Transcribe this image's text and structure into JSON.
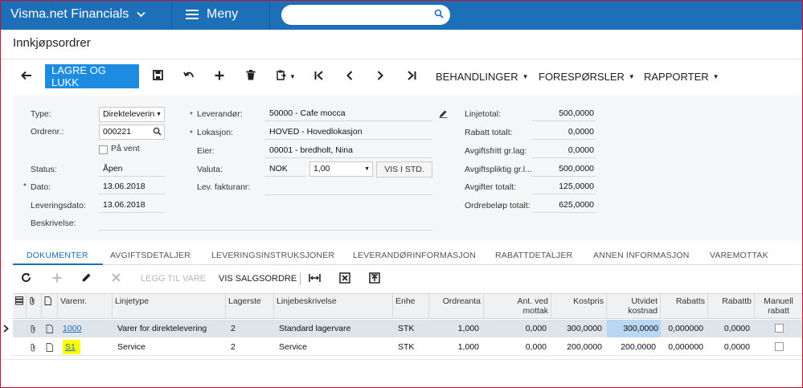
{
  "topbar": {
    "app_title": "Visma.net Financials",
    "menu_label": "Meny",
    "search_placeholder": ""
  },
  "page": {
    "title": "Innkjøpsordrer"
  },
  "toolbar": {
    "save_close_label": "LAGRE OG LUKK",
    "actions_label": "BEHANDLINGER",
    "inquiries_label": "FORESPØRSLER",
    "reports_label": "RAPPORTER"
  },
  "form": {
    "type_label": "Type:",
    "type_value": "Direkteleverin",
    "order_no_label": "Ordrenr.:",
    "order_no_value": "000221",
    "on_hold_label": "På vent",
    "status_label": "Status:",
    "status_value": "Åpen",
    "date_label": "Dato:",
    "date_value": "13.06.2018",
    "delivery_date_label": "Leveringsdato:",
    "delivery_date_value": "13.06.2018",
    "description_label": "Beskrivelse:",
    "description_value": "",
    "supplier_label": "Leverandør:",
    "supplier_value": "50000 - Cafe mocca",
    "location_label": "Lokasjon:",
    "location_value": "HOVED - Hovedlokasjon",
    "owner_label": "Eier:",
    "owner_value": "00001 - bredholt, Nina",
    "currency_label": "Valuta:",
    "currency_value": "NOK",
    "rate_value": "1,00",
    "base_button_label": "VIS I STD.",
    "supplier_invoice_label": "Lev. fakturanr:",
    "supplier_invoice_value": "",
    "totals": [
      {
        "label": "Linjetotal:",
        "value": "500,0000"
      },
      {
        "label": "Rabatt totalt:",
        "value": "0,0000"
      },
      {
        "label": "Avgiftsfritt gr.lag:",
        "value": "0,0000"
      },
      {
        "label": "Avgiftspliktig gr.l...",
        "value": "500,0000"
      },
      {
        "label": "Avgifter totalt:",
        "value": "125,0000"
      },
      {
        "label": "Ordrebeløp totalt:",
        "value": "625,0000"
      }
    ]
  },
  "tabs": [
    "DOKUMENTER",
    "AVGIFTSDETALJER",
    "LEVERINGSINSTRUKSJONER",
    "LEVERANDØRINFORMASJON",
    "RABATTDETALJER",
    "ANNEN INFORMASJON",
    "VAREMOTTAK"
  ],
  "grid_toolbar": {
    "add_from_item_label": "LEGG TIL VARE",
    "view_sales_order_label": "VIS SALGSORDRE"
  },
  "grid": {
    "headers": {
      "item_no": "Varenr.",
      "line_type": "Linjetype",
      "warehouse": "Lagerste",
      "line_desc": "Linjebeskrivelse",
      "unit": "Enhe",
      "order_qty": "Ordreanta",
      "qty_on_receipts_1": "Ant. ved",
      "qty_on_receipts_2": "mottak",
      "unit_cost": "Kostpris",
      "ext_cost_1": "Utvidet",
      "ext_cost_2": "kostnad",
      "discount_pct": "Rabatts",
      "discount_amt": "Rabattb",
      "manual_discount_1": "Manuell",
      "manual_discount_2": "rabatt"
    },
    "rows": [
      {
        "item_no": "1000",
        "line_type": "Varer for direktelevering",
        "warehouse": "2",
        "line_desc": "Standard lagervare",
        "unit": "STK",
        "order_qty": "1,000",
        "qty_on_receipts": "0,000",
        "unit_cost": "300,0000",
        "ext_cost": "300,0000",
        "discount_pct": "0,000000",
        "discount_amt": "0,0000"
      },
      {
        "item_no": "S1",
        "line_type": "Service",
        "warehouse": "2",
        "line_desc": "Service",
        "unit": "STK",
        "order_qty": "1,000",
        "qty_on_receipts": "0,000",
        "unit_cost": "200,0000",
        "ext_cost": "200,0000",
        "discount_pct": "0,000000",
        "discount_amt": "0,0000"
      }
    ]
  },
  "colors": {
    "topbar": "#1d6fb8",
    "primary_button": "#1d8ce0",
    "highlight_yellow": "#ffff00",
    "highlight_blue": "#b9d7f3",
    "selected_row": "#dde4ea"
  }
}
